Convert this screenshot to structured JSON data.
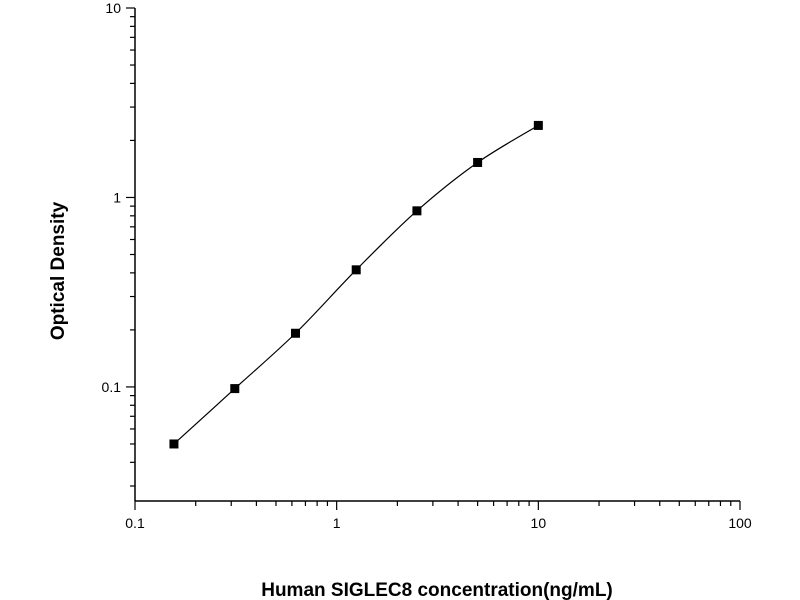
{
  "chart_data": {
    "type": "scatter",
    "title": "",
    "xlabel": "Human SIGLEC8 concentration(ng/mL)",
    "ylabel": "Optical Density",
    "xscale": "log",
    "yscale": "log",
    "xlim": [
      0.1,
      100
    ],
    "ylim": [
      0.025,
      10
    ],
    "x_ticks": [
      {
        "value": 0.1,
        "label": "0.1"
      },
      {
        "value": 1,
        "label": "1"
      },
      {
        "value": 10,
        "label": "10"
      },
      {
        "value": 100,
        "label": "100"
      }
    ],
    "y_ticks": [
      {
        "value": 0.1,
        "label": "0.1"
      },
      {
        "value": 1,
        "label": "1"
      },
      {
        "value": 10,
        "label": "10"
      }
    ],
    "grid": false,
    "legend": "none",
    "fit_curve": true,
    "marker": "square",
    "color": "#000000",
    "series": [
      {
        "x": [
          0.156,
          0.3125,
          0.625,
          1.25,
          2.5,
          5,
          10
        ],
        "y": [
          0.05,
          0.098,
          0.192,
          0.415,
          0.85,
          1.53,
          2.4
        ]
      }
    ]
  }
}
